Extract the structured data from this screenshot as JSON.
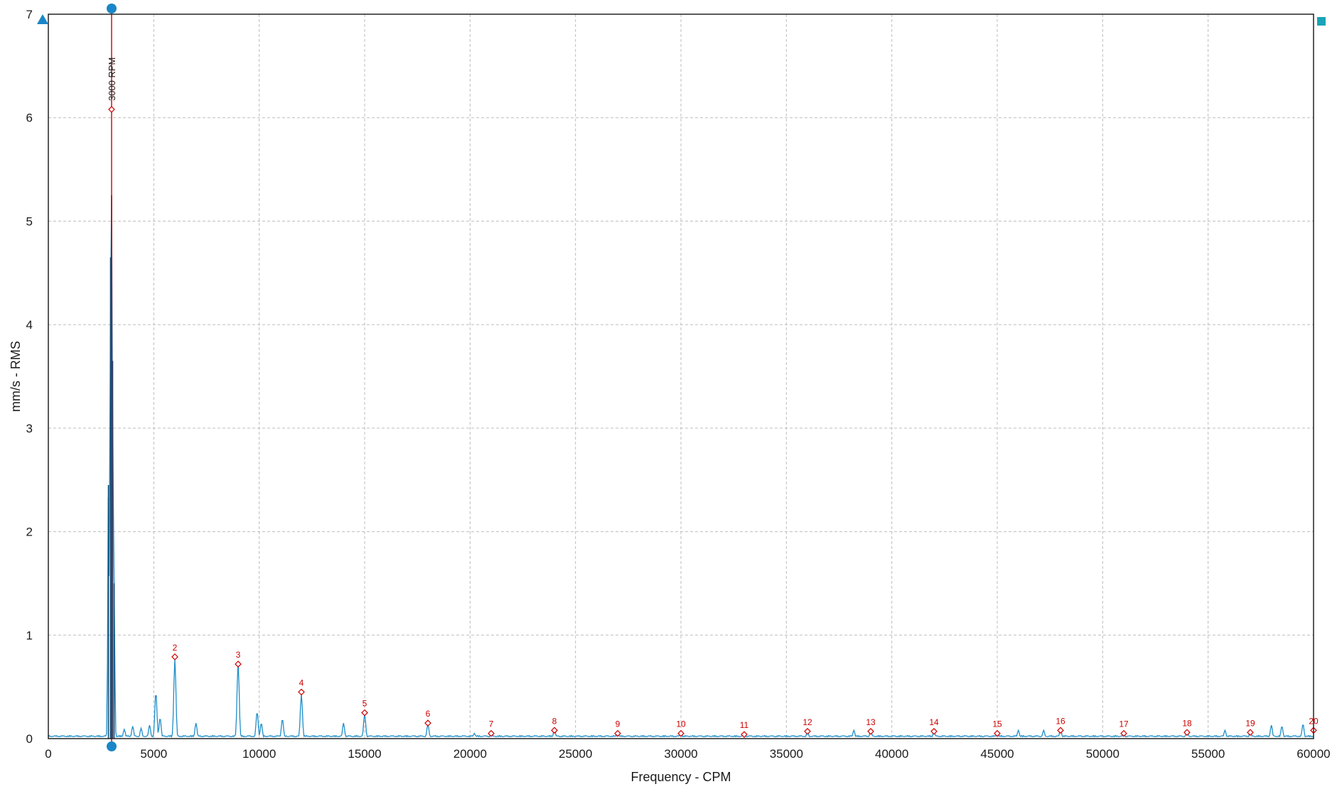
{
  "chart_data": {
    "type": "line",
    "xlabel": "Frequency - CPM",
    "ylabel": "mm/s - RMS",
    "xlim": [
      0,
      60000
    ],
    "ylim": [
      0,
      7
    ],
    "x_ticks": [
      "0",
      "5000",
      "10000",
      "15000",
      "20000",
      "25000",
      "30000",
      "35000",
      "40000",
      "45000",
      "50000",
      "55000",
      "60000"
    ],
    "y_ticks": [
      "0",
      "1",
      "2",
      "3",
      "4",
      "5",
      "6",
      "7"
    ],
    "grid": true,
    "line_color": "#1f8fc9",
    "cursor_color": "#cc0000",
    "marker_color": "#1a86c7",
    "baseline_level": 0.03,
    "running_speed": {
      "label": "3000 RPM",
      "x": 3000,
      "y": 6.08
    },
    "spectrum_peaks": [
      {
        "x": 2850,
        "y": 2.45
      },
      {
        "x": 2950,
        "y": 4.65
      },
      {
        "x": 3000,
        "y": 5.25
      },
      {
        "x": 3050,
        "y": 3.65
      },
      {
        "x": 3120,
        "y": 1.5
      },
      {
        "x": 3600,
        "y": 0.09
      },
      {
        "x": 4000,
        "y": 0.12
      },
      {
        "x": 4400,
        "y": 0.1
      },
      {
        "x": 4800,
        "y": 0.13
      },
      {
        "x": 5100,
        "y": 0.45
      },
      {
        "x": 5300,
        "y": 0.2
      },
      {
        "x": 6000,
        "y": 0.77
      },
      {
        "x": 7000,
        "y": 0.15
      },
      {
        "x": 9000,
        "y": 0.74
      },
      {
        "x": 9900,
        "y": 0.26
      },
      {
        "x": 10100,
        "y": 0.15
      },
      {
        "x": 11100,
        "y": 0.19
      },
      {
        "x": 12000,
        "y": 0.43
      },
      {
        "x": 14000,
        "y": 0.15
      },
      {
        "x": 15000,
        "y": 0.24
      },
      {
        "x": 18000,
        "y": 0.14
      },
      {
        "x": 20200,
        "y": 0.05
      },
      {
        "x": 21000,
        "y": 0.05
      },
      {
        "x": 24000,
        "y": 0.09
      },
      {
        "x": 27000,
        "y": 0.05
      },
      {
        "x": 30000,
        "y": 0.05
      },
      {
        "x": 33000,
        "y": 0.04
      },
      {
        "x": 36000,
        "y": 0.07
      },
      {
        "x": 38200,
        "y": 0.08
      },
      {
        "x": 39000,
        "y": 0.08
      },
      {
        "x": 42000,
        "y": 0.07
      },
      {
        "x": 45000,
        "y": 0.05
      },
      {
        "x": 46000,
        "y": 0.08
      },
      {
        "x": 47200,
        "y": 0.08
      },
      {
        "x": 48000,
        "y": 0.09
      },
      {
        "x": 51000,
        "y": 0.05
      },
      {
        "x": 54000,
        "y": 0.07
      },
      {
        "x": 55800,
        "y": 0.08
      },
      {
        "x": 57000,
        "y": 0.07
      },
      {
        "x": 58000,
        "y": 0.13
      },
      {
        "x": 58500,
        "y": 0.12
      },
      {
        "x": 59500,
        "y": 0.14
      }
    ],
    "harmonics": [
      {
        "label": "2",
        "x": 6000,
        "y": 0.79
      },
      {
        "label": "3",
        "x": 9000,
        "y": 0.72
      },
      {
        "label": "4",
        "x": 12000,
        "y": 0.45
      },
      {
        "label": "5",
        "x": 15000,
        "y": 0.25
      },
      {
        "label": "6",
        "x": 18000,
        "y": 0.15
      },
      {
        "label": "7",
        "x": 21000,
        "y": 0.05
      },
      {
        "label": "8",
        "x": 24000,
        "y": 0.08
      },
      {
        "label": "9",
        "x": 27000,
        "y": 0.05
      },
      {
        "label": "10",
        "x": 30000,
        "y": 0.05
      },
      {
        "label": "11",
        "x": 33000,
        "y": 0.04
      },
      {
        "label": "12",
        "x": 36000,
        "y": 0.07
      },
      {
        "label": "13",
        "x": 39000,
        "y": 0.07
      },
      {
        "label": "14",
        "x": 42000,
        "y": 0.07
      },
      {
        "label": "15",
        "x": 45000,
        "y": 0.05
      },
      {
        "label": "16",
        "x": 48000,
        "y": 0.08
      },
      {
        "label": "17",
        "x": 51000,
        "y": 0.05
      },
      {
        "label": "18",
        "x": 54000,
        "y": 0.06
      },
      {
        "label": "19",
        "x": 57000,
        "y": 0.06
      },
      {
        "label": "20",
        "x": 60000,
        "y": 0.08
      }
    ]
  }
}
